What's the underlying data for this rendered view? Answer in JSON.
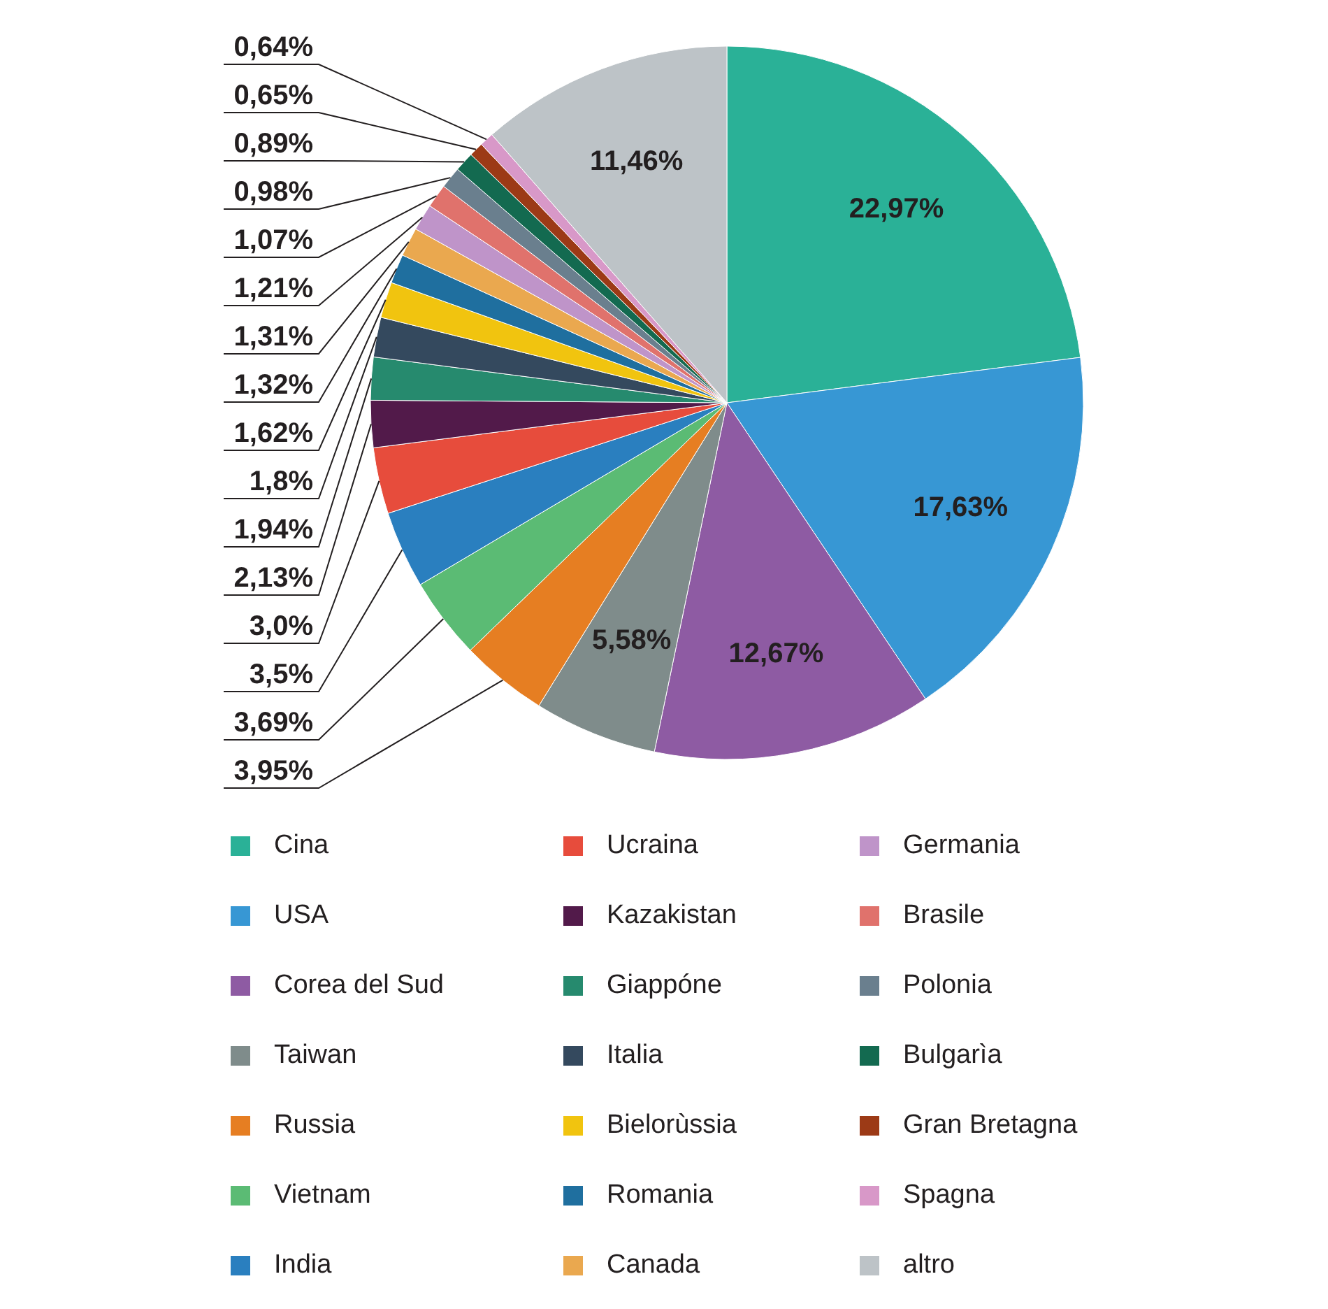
{
  "chart_data": {
    "type": "pie",
    "categories": [
      "Cina",
      "USA",
      "Corea del Sud",
      "Taiwan",
      "Russia",
      "Vietnam",
      "India",
      "Ucraina",
      "Kazakistan",
      "Giappóne",
      "Italia",
      "Bielorùssia",
      "Romania",
      "Canada",
      "Germania",
      "Brasile",
      "Polonia",
      "Bulgarìa",
      "Gran Bretagna",
      "Spagna",
      "altro"
    ],
    "values": [
      22.97,
      17.63,
      12.67,
      5.58,
      3.95,
      3.69,
      3.5,
      3.0,
      2.13,
      1.94,
      1.8,
      1.62,
      1.32,
      1.31,
      1.21,
      1.07,
      0.98,
      0.89,
      0.65,
      0.64,
      11.46
    ],
    "value_labels": [
      "22,97%",
      "17,63%",
      "12,67%",
      "5,58%",
      "3,95%",
      "3,69%",
      "3,5%",
      "3,0%",
      "2,13%",
      "1,94%",
      "1,8%",
      "1,62%",
      "1,32%",
      "1,31%",
      "1,21%",
      "1,07%",
      "0,98%",
      "0,89%",
      "0,65%",
      "0,64%",
      "11,46%"
    ],
    "colors": [
      "#2ab197",
      "#3797d4",
      "#8e5ba3",
      "#7f8c8b",
      "#e67e22",
      "#5bbb74",
      "#2a7fbf",
      "#e74c3c",
      "#521a4a",
      "#268a6e",
      "#34495e",
      "#f1c40f",
      "#1f6f9f",
      "#eaa84f",
      "#bf94c9",
      "#e0726c",
      "#6a7f8e",
      "#136a50",
      "#9c3a16",
      "#d898c8",
      "#bdc3c7"
    ],
    "legend": "bottom"
  }
}
